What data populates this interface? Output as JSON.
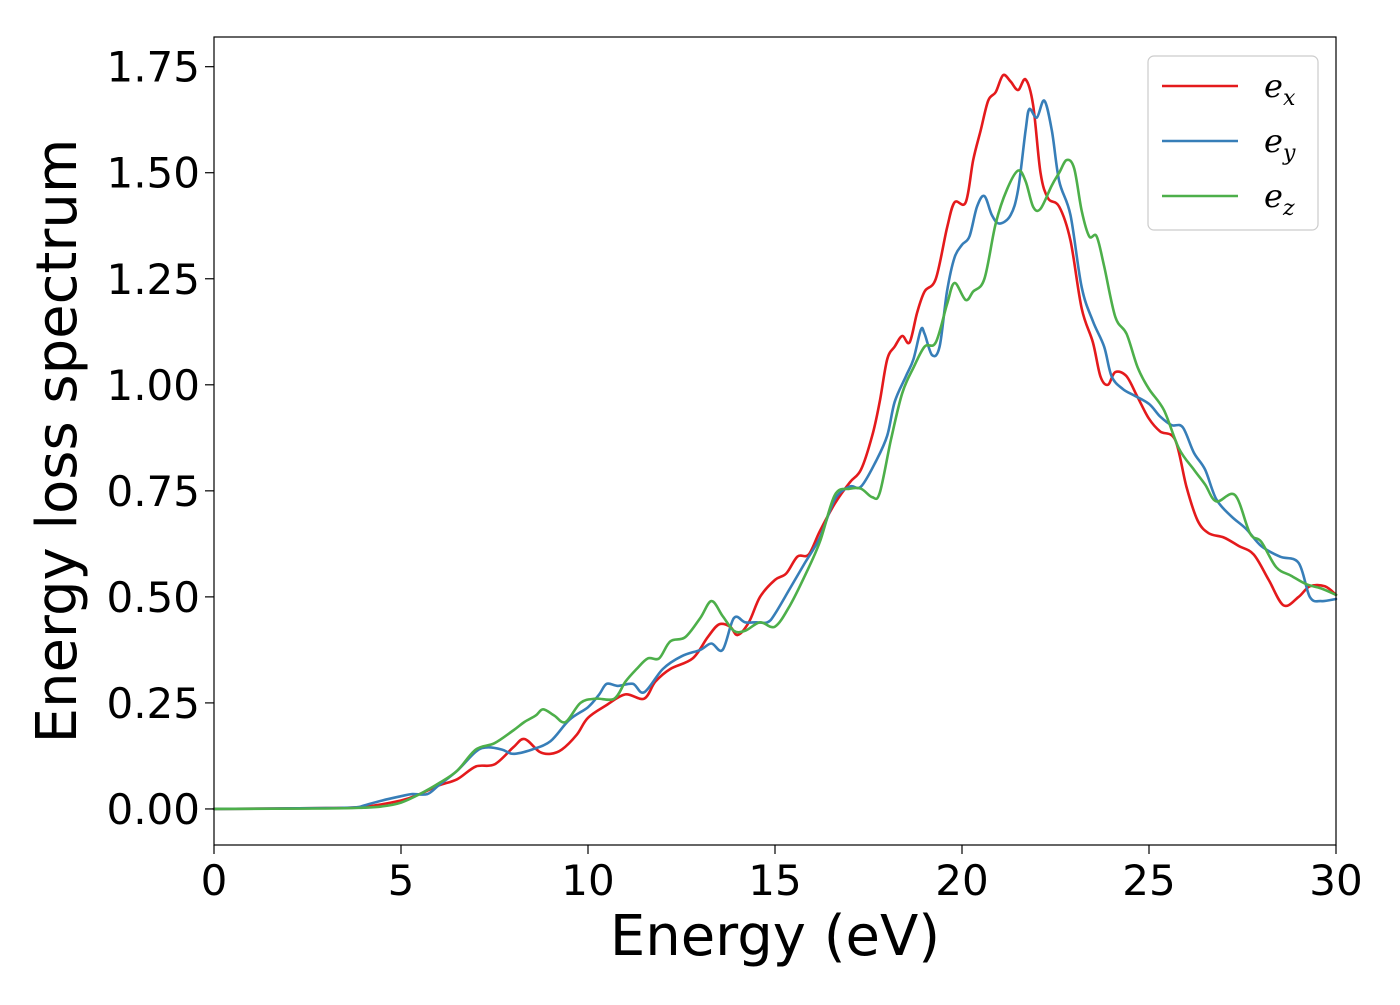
{
  "chart_data": {
    "type": "line",
    "title": "",
    "xlabel": "Energy (eV)",
    "ylabel": "Energy loss spectrum",
    "xlim": [
      0,
      30
    ],
    "ylim": [
      -0.085,
      1.82
    ],
    "x_ticks": [
      0,
      5,
      10,
      15,
      20,
      25,
      30
    ],
    "x_tick_labels": [
      "0",
      "5",
      "10",
      "15",
      "20",
      "25",
      "30"
    ],
    "y_ticks": [
      0.0,
      0.25,
      0.5,
      0.75,
      1.0,
      1.25,
      1.5,
      1.75
    ],
    "y_tick_labels": [
      "0.00",
      "0.25",
      "0.50",
      "0.75",
      "1.00",
      "1.25",
      "1.50",
      "1.75"
    ],
    "grid": false,
    "legend_position": "top-right",
    "series": [
      {
        "name": "e_x",
        "label_base": "e",
        "label_sub": "x",
        "color": "#e41a1c",
        "points": [
          [
            0,
            0.0
          ],
          [
            3,
            0.002
          ],
          [
            4,
            0.005
          ],
          [
            5,
            0.02
          ],
          [
            5.5,
            0.035
          ],
          [
            6,
            0.055
          ],
          [
            6.5,
            0.07
          ],
          [
            7,
            0.1
          ],
          [
            7.5,
            0.105
          ],
          [
            8,
            0.145
          ],
          [
            8.3,
            0.165
          ],
          [
            8.7,
            0.135
          ],
          [
            9,
            0.13
          ],
          [
            9.3,
            0.14
          ],
          [
            9.7,
            0.175
          ],
          [
            10,
            0.215
          ],
          [
            10.5,
            0.245
          ],
          [
            11,
            0.27
          ],
          [
            11.5,
            0.26
          ],
          [
            11.8,
            0.3
          ],
          [
            12.2,
            0.33
          ],
          [
            12.8,
            0.355
          ],
          [
            13.2,
            0.405
          ],
          [
            13.5,
            0.435
          ],
          [
            13.8,
            0.43
          ],
          [
            14,
            0.41
          ],
          [
            14.3,
            0.44
          ],
          [
            14.6,
            0.5
          ],
          [
            15,
            0.54
          ],
          [
            15.3,
            0.555
          ],
          [
            15.6,
            0.595
          ],
          [
            15.9,
            0.6
          ],
          [
            16.2,
            0.655
          ],
          [
            16.6,
            0.72
          ],
          [
            17,
            0.77
          ],
          [
            17.3,
            0.8
          ],
          [
            17.6,
            0.88
          ],
          [
            17.8,
            0.96
          ],
          [
            18,
            1.06
          ],
          [
            18.2,
            1.09
          ],
          [
            18.4,
            1.115
          ],
          [
            18.6,
            1.1
          ],
          [
            18.8,
            1.17
          ],
          [
            19,
            1.22
          ],
          [
            19.3,
            1.25
          ],
          [
            19.6,
            1.37
          ],
          [
            19.8,
            1.43
          ],
          [
            20.1,
            1.43
          ],
          [
            20.3,
            1.53
          ],
          [
            20.5,
            1.6
          ],
          [
            20.7,
            1.67
          ],
          [
            20.9,
            1.69
          ],
          [
            21.1,
            1.73
          ],
          [
            21.3,
            1.715
          ],
          [
            21.5,
            1.695
          ],
          [
            21.7,
            1.72
          ],
          [
            21.9,
            1.66
          ],
          [
            22.1,
            1.5
          ],
          [
            22.3,
            1.44
          ],
          [
            22.6,
            1.42
          ],
          [
            22.9,
            1.34
          ],
          [
            23.2,
            1.18
          ],
          [
            23.5,
            1.1
          ],
          [
            23.7,
            1.02
          ],
          [
            23.9,
            1.0
          ],
          [
            24.1,
            1.03
          ],
          [
            24.4,
            1.02
          ],
          [
            24.7,
            0.97
          ],
          [
            25,
            0.92
          ],
          [
            25.3,
            0.89
          ],
          [
            25.7,
            0.87
          ],
          [
            26,
            0.76
          ],
          [
            26.3,
            0.68
          ],
          [
            26.6,
            0.65
          ],
          [
            27,
            0.64
          ],
          [
            27.4,
            0.62
          ],
          [
            27.8,
            0.6
          ],
          [
            28.2,
            0.54
          ],
          [
            28.6,
            0.48
          ],
          [
            29,
            0.5
          ],
          [
            29.3,
            0.525
          ],
          [
            29.7,
            0.525
          ],
          [
            30,
            0.505
          ]
        ]
      },
      {
        "name": "e_y",
        "label_base": "e",
        "label_sub": "y",
        "color": "#377eb8",
        "points": [
          [
            0,
            0.0
          ],
          [
            3,
            0.002
          ],
          [
            3.8,
            0.004
          ],
          [
            4,
            0.008
          ],
          [
            4.5,
            0.02
          ],
          [
            5,
            0.03
          ],
          [
            5.3,
            0.035
          ],
          [
            5.7,
            0.035
          ],
          [
            6,
            0.055
          ],
          [
            6.5,
            0.09
          ],
          [
            7,
            0.135
          ],
          [
            7.3,
            0.145
          ],
          [
            7.7,
            0.14
          ],
          [
            8,
            0.13
          ],
          [
            8.5,
            0.14
          ],
          [
            9,
            0.16
          ],
          [
            9.5,
            0.21
          ],
          [
            10,
            0.24
          ],
          [
            10.3,
            0.27
          ],
          [
            10.5,
            0.295
          ],
          [
            10.8,
            0.29
          ],
          [
            11.2,
            0.295
          ],
          [
            11.5,
            0.275
          ],
          [
            12,
            0.33
          ],
          [
            12.5,
            0.36
          ],
          [
            13,
            0.375
          ],
          [
            13.3,
            0.39
          ],
          [
            13.6,
            0.375
          ],
          [
            13.9,
            0.45
          ],
          [
            14.2,
            0.44
          ],
          [
            14.5,
            0.44
          ],
          [
            14.8,
            0.44
          ],
          [
            15,
            0.46
          ],
          [
            15.4,
            0.52
          ],
          [
            15.8,
            0.58
          ],
          [
            16.2,
            0.64
          ],
          [
            16.6,
            0.73
          ],
          [
            17,
            0.76
          ],
          [
            17.3,
            0.76
          ],
          [
            17.7,
            0.82
          ],
          [
            18,
            0.88
          ],
          [
            18.2,
            0.96
          ],
          [
            18.5,
            1.02
          ],
          [
            18.7,
            1.06
          ],
          [
            18.9,
            1.13
          ],
          [
            19,
            1.12
          ],
          [
            19.2,
            1.07
          ],
          [
            19.4,
            1.09
          ],
          [
            19.6,
            1.22
          ],
          [
            19.8,
            1.3
          ],
          [
            20,
            1.33
          ],
          [
            20.2,
            1.35
          ],
          [
            20.4,
            1.42
          ],
          [
            20.6,
            1.445
          ],
          [
            20.8,
            1.4
          ],
          [
            21,
            1.38
          ],
          [
            21.3,
            1.4
          ],
          [
            21.5,
            1.46
          ],
          [
            21.7,
            1.6
          ],
          [
            21.8,
            1.65
          ],
          [
            22,
            1.63
          ],
          [
            22.2,
            1.67
          ],
          [
            22.4,
            1.6
          ],
          [
            22.6,
            1.48
          ],
          [
            22.9,
            1.4
          ],
          [
            23.2,
            1.23
          ],
          [
            23.5,
            1.15
          ],
          [
            23.8,
            1.09
          ],
          [
            24,
            1.02
          ],
          [
            24.3,
            0.99
          ],
          [
            24.6,
            0.975
          ],
          [
            25,
            0.955
          ],
          [
            25.3,
            0.925
          ],
          [
            25.6,
            0.905
          ],
          [
            25.9,
            0.9
          ],
          [
            26.2,
            0.84
          ],
          [
            26.5,
            0.8
          ],
          [
            26.8,
            0.73
          ],
          [
            27.2,
            0.69
          ],
          [
            27.6,
            0.66
          ],
          [
            28,
            0.62
          ],
          [
            28.5,
            0.595
          ],
          [
            29,
            0.58
          ],
          [
            29.3,
            0.5
          ],
          [
            29.6,
            0.49
          ],
          [
            30,
            0.495
          ]
        ]
      },
      {
        "name": "e_z",
        "label_base": "e",
        "label_sub": "z",
        "color": "#4daf4a",
        "points": [
          [
            0,
            0.0
          ],
          [
            3,
            0.001
          ],
          [
            4,
            0.003
          ],
          [
            4.5,
            0.006
          ],
          [
            5,
            0.015
          ],
          [
            5.5,
            0.035
          ],
          [
            6,
            0.06
          ],
          [
            6.5,
            0.09
          ],
          [
            7,
            0.14
          ],
          [
            7.5,
            0.155
          ],
          [
            8,
            0.185
          ],
          [
            8.3,
            0.205
          ],
          [
            8.6,
            0.22
          ],
          [
            8.8,
            0.235
          ],
          [
            9.1,
            0.22
          ],
          [
            9.4,
            0.205
          ],
          [
            9.8,
            0.25
          ],
          [
            10.2,
            0.26
          ],
          [
            10.7,
            0.26
          ],
          [
            11,
            0.3
          ],
          [
            11.3,
            0.33
          ],
          [
            11.6,
            0.355
          ],
          [
            11.9,
            0.355
          ],
          [
            12.2,
            0.395
          ],
          [
            12.6,
            0.405
          ],
          [
            13,
            0.45
          ],
          [
            13.3,
            0.49
          ],
          [
            13.6,
            0.455
          ],
          [
            13.9,
            0.42
          ],
          [
            14.2,
            0.42
          ],
          [
            14.6,
            0.44
          ],
          [
            15,
            0.43
          ],
          [
            15.4,
            0.48
          ],
          [
            15.8,
            0.55
          ],
          [
            16.2,
            0.63
          ],
          [
            16.6,
            0.74
          ],
          [
            17,
            0.755
          ],
          [
            17.3,
            0.755
          ],
          [
            17.6,
            0.735
          ],
          [
            17.8,
            0.745
          ],
          [
            18.1,
            0.87
          ],
          [
            18.4,
            0.98
          ],
          [
            18.7,
            1.04
          ],
          [
            19,
            1.09
          ],
          [
            19.3,
            1.1
          ],
          [
            19.6,
            1.19
          ],
          [
            19.8,
            1.24
          ],
          [
            20.1,
            1.2
          ],
          [
            20.3,
            1.22
          ],
          [
            20.6,
            1.25
          ],
          [
            20.9,
            1.38
          ],
          [
            21.2,
            1.46
          ],
          [
            21.5,
            1.505
          ],
          [
            21.7,
            1.48
          ],
          [
            21.9,
            1.42
          ],
          [
            22.1,
            1.415
          ],
          [
            22.4,
            1.47
          ],
          [
            22.6,
            1.5
          ],
          [
            22.8,
            1.53
          ],
          [
            23,
            1.51
          ],
          [
            23.2,
            1.41
          ],
          [
            23.4,
            1.35
          ],
          [
            23.6,
            1.35
          ],
          [
            23.8,
            1.28
          ],
          [
            24.1,
            1.16
          ],
          [
            24.4,
            1.12
          ],
          [
            24.7,
            1.04
          ],
          [
            25,
            0.99
          ],
          [
            25.4,
            0.94
          ],
          [
            25.8,
            0.85
          ],
          [
            26.2,
            0.8
          ],
          [
            26.5,
            0.765
          ],
          [
            26.8,
            0.725
          ],
          [
            27.3,
            0.74
          ],
          [
            27.7,
            0.65
          ],
          [
            28,
            0.63
          ],
          [
            28.4,
            0.57
          ],
          [
            28.8,
            0.55
          ],
          [
            29.2,
            0.53
          ],
          [
            29.6,
            0.52
          ],
          [
            30,
            0.505
          ]
        ]
      }
    ]
  }
}
